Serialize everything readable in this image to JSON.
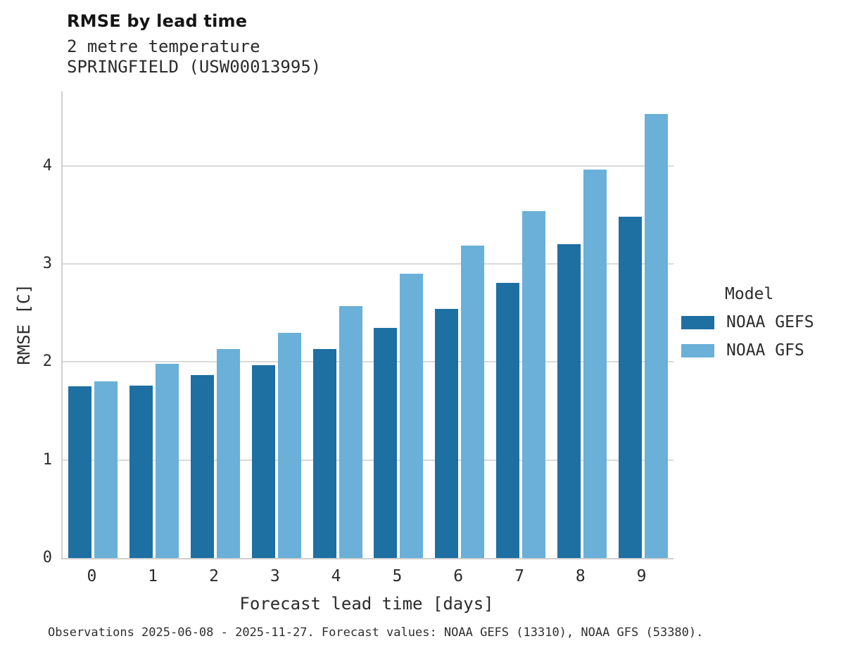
{
  "header": {
    "title": "RMSE by lead time",
    "subtitle": "2 metre temperature",
    "station": "SPRINGFIELD (USW00013995)"
  },
  "legend": {
    "title": "Model"
  },
  "caption": "Observations 2025-06-08 - 2025-11-27. Forecast values: NOAA GEFS (13310), NOAA GFS (53380).",
  "colors": {
    "gefs_bar": "#1e6fa2",
    "gfs_bar": "#6ab0d8",
    "gridline": "#dadada",
    "axis_spine": "#cfcfcf"
  },
  "chart_data": {
    "type": "bar",
    "title": "RMSE by lead time",
    "subtitle": "2 metre temperature",
    "station": "SPRINGFIELD (USW00013995)",
    "xlabel": "Forecast lead time [days]",
    "ylabel": "RMSE [C]",
    "categories": [
      "0",
      "1",
      "2",
      "3",
      "4",
      "5",
      "6",
      "7",
      "8",
      "9"
    ],
    "series": [
      {
        "name": "NOAA GEFS",
        "color": "#1e6fa2",
        "values": [
          1.75,
          1.76,
          1.87,
          1.97,
          2.13,
          2.35,
          2.54,
          2.81,
          3.2,
          3.48
        ]
      },
      {
        "name": "NOAA GFS",
        "color": "#6ab0d8",
        "values": [
          1.8,
          1.98,
          2.13,
          2.3,
          2.57,
          2.9,
          3.19,
          3.54,
          3.96,
          4.53
        ]
      }
    ],
    "yticks": [
      0,
      1,
      2,
      3,
      4
    ],
    "ylim": [
      0,
      4.76
    ],
    "grid": true,
    "legend_title": "Model",
    "legend_position": "right",
    "caption": "Observations 2025-06-08 - 2025-11-27. Forecast values: NOAA GEFS (13310), NOAA GFS (53380)."
  }
}
